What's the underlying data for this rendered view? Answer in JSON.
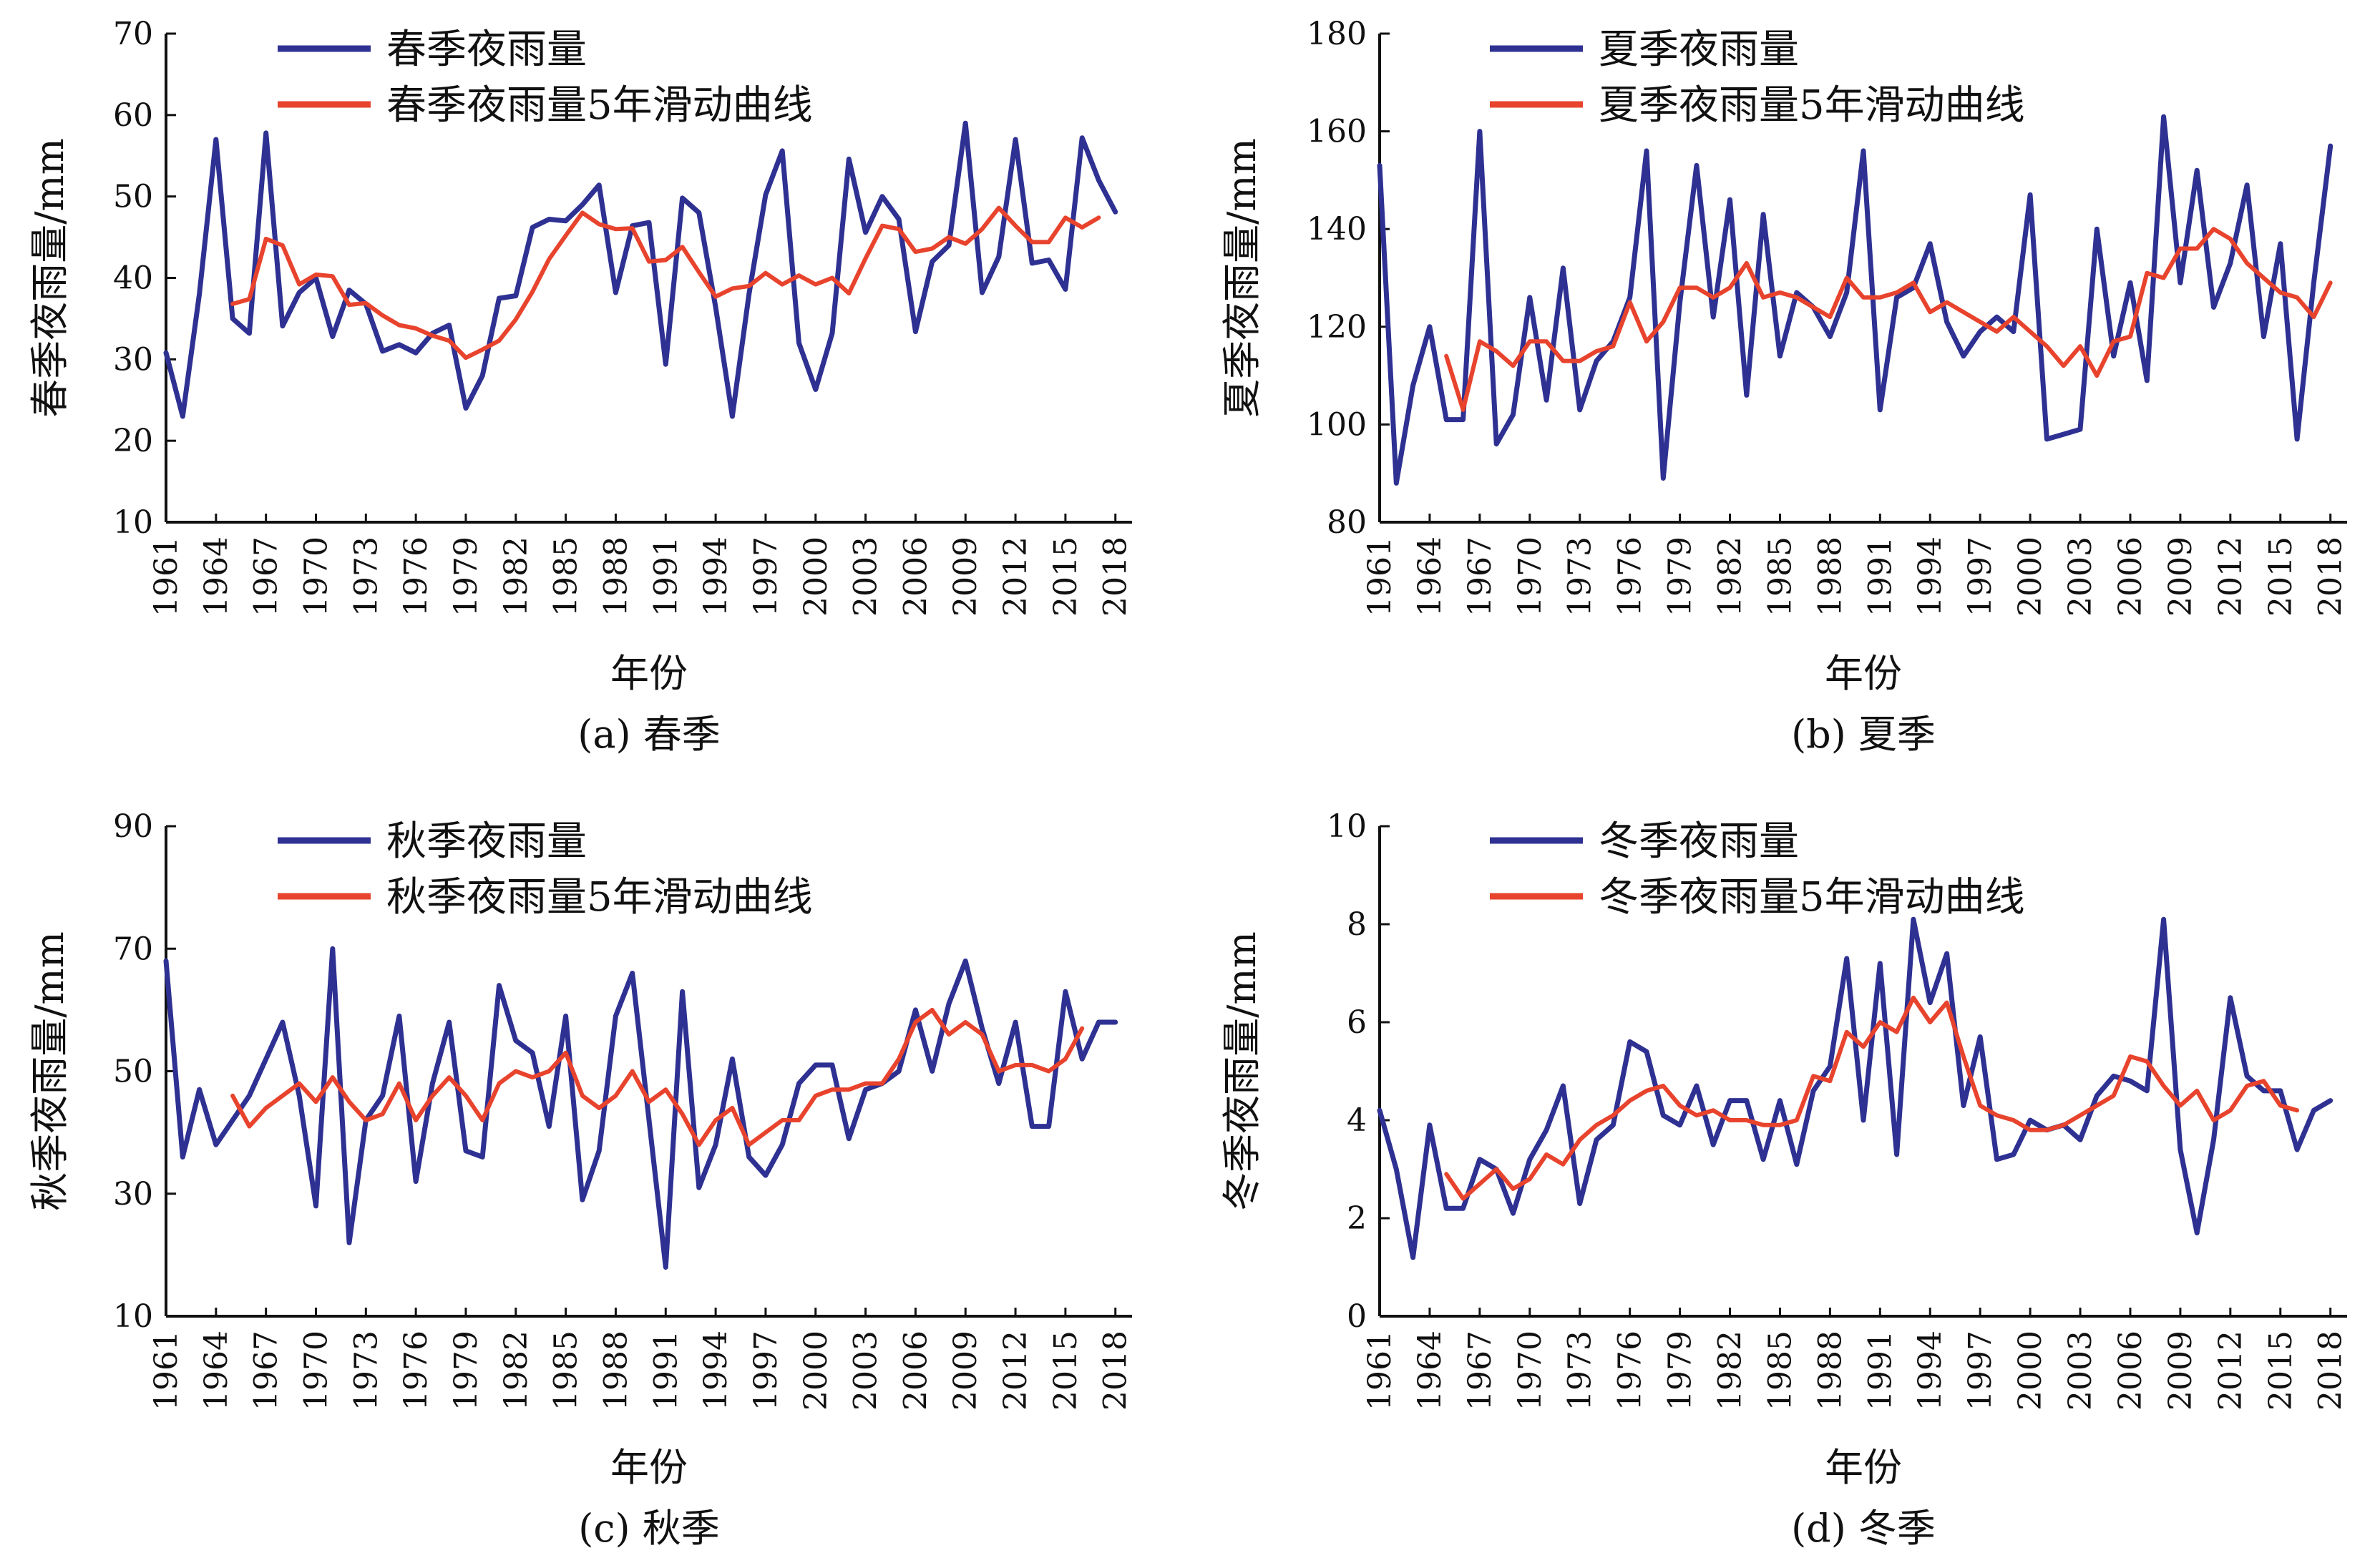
{
  "colors": {
    "raw": "#2e3192",
    "smooth": "#e8432d",
    "axis": "#111111"
  },
  "chart_data": [
    {
      "type": "line",
      "caption": "(a) 春季",
      "xlabel": "年份",
      "ylabel": "春季夜雨量/mm",
      "ylim": [
        10,
        70
      ],
      "yticks": [
        10,
        20,
        30,
        40,
        50,
        60,
        70
      ],
      "xlim": [
        1961,
        2019
      ],
      "xticks": [
        1961,
        1964,
        1967,
        1970,
        1973,
        1976,
        1979,
        1982,
        1985,
        1988,
        1991,
        1994,
        1997,
        2000,
        2003,
        2006,
        2009,
        2012,
        2015,
        2018
      ],
      "legend_position": "top-left",
      "series": [
        {
          "name": "春季夜雨量",
          "color": "#2e3192",
          "x_start": 1961,
          "values": [
            30.8,
            23.0,
            38.0,
            57.0,
            35.0,
            33.2,
            57.8,
            34.1,
            38.2,
            40.0,
            32.8,
            38.5,
            36.8,
            31.0,
            31.8,
            30.8,
            33.2,
            34.2,
            24.0,
            28.0,
            37.5,
            37.8,
            46.2,
            47.2,
            47.0,
            49.0,
            51.4,
            38.2,
            46.4,
            46.8,
            29.4,
            49.8,
            48.0,
            36.4,
            23.0,
            38.0,
            50.2,
            55.6,
            32.0,
            26.3,
            33.2,
            54.6,
            45.6,
            50.0,
            47.2,
            33.4,
            42.0,
            44.0,
            59.0,
            38.2,
            42.6,
            57.0,
            41.8,
            42.2,
            38.6,
            57.2,
            52.0,
            48.1
          ]
        },
        {
          "name": "春季夜雨量5年滑动曲线",
          "color": "#e8432d",
          "x_start": 1965,
          "values": [
            36.8,
            37.4,
            44.8,
            44.0,
            39.2,
            40.4,
            40.2,
            36.7,
            36.9,
            35.4,
            34.2,
            33.8,
            32.9,
            32.3,
            30.2,
            31.2,
            32.3,
            34.9,
            38.3,
            42.3,
            45.2,
            48.0,
            46.6,
            46.0,
            46.1,
            42.0,
            42.2,
            43.8,
            40.7,
            37.7,
            38.7,
            39.0,
            40.6,
            39.2,
            40.3,
            39.2,
            40.0,
            38.1,
            42.4,
            46.4,
            46.0,
            43.2,
            43.6,
            45.0,
            44.2,
            46.0,
            48.6,
            46.4,
            44.4,
            44.4,
            47.4,
            46.2,
            47.4
          ]
        }
      ]
    },
    {
      "type": "line",
      "caption": "(b) 夏季",
      "xlabel": "年份",
      "ylabel": "夏季夜雨量/mm",
      "ylim": [
        80,
        180
      ],
      "yticks": [
        80,
        100,
        120,
        140,
        160,
        180
      ],
      "xlim": [
        1961,
        2019
      ],
      "xticks": [
        1961,
        1964,
        1967,
        1970,
        1973,
        1976,
        1979,
        1982,
        1985,
        1988,
        1991,
        1994,
        1997,
        2000,
        2003,
        2006,
        2009,
        2012,
        2015,
        2018
      ],
      "legend_position": "top-left",
      "series": [
        {
          "name": "夏季夜雨量",
          "color": "#2e3192",
          "x_start": 1961,
          "values": [
            153,
            88,
            108,
            120,
            101,
            101,
            160,
            96,
            102,
            126,
            105,
            132,
            103,
            113,
            117,
            126,
            156,
            89,
            125,
            153,
            122,
            146,
            106,
            143,
            114,
            127,
            124,
            118,
            127,
            156,
            103,
            126,
            128,
            137,
            121,
            114,
            119,
            122,
            119,
            147,
            97,
            98,
            99,
            140,
            114,
            129,
            109,
            163,
            129,
            152,
            124,
            133,
            149,
            118,
            137,
            97,
            129,
            157
          ]
        },
        {
          "name": "夏季夜雨量5年滑动曲线",
          "color": "#e8432d",
          "x_start": 1965,
          "values": [
            114,
            103,
            117,
            115,
            112,
            117,
            117,
            113,
            113,
            115,
            116,
            125,
            117,
            121,
            128,
            128,
            126,
            128,
            133,
            126,
            127,
            126,
            124,
            122,
            130,
            126,
            126,
            127,
            129,
            123,
            125,
            123,
            121,
            119,
            122,
            119,
            116,
            112,
            116,
            110,
            117,
            118,
            131,
            130,
            136,
            136,
            140,
            138,
            133,
            130,
            127,
            126,
            122,
            129
          ]
        }
      ]
    },
    {
      "type": "line",
      "caption": "(c) 秋季",
      "xlabel": "年份",
      "ylabel": "秋季夜雨量/mm",
      "ylim": [
        10,
        90
      ],
      "yticks": [
        10,
        30,
        50,
        70,
        90
      ],
      "xlim": [
        1961,
        2019
      ],
      "xticks": [
        1961,
        1964,
        1967,
        1970,
        1973,
        1976,
        1979,
        1982,
        1985,
        1988,
        1991,
        1994,
        1997,
        2000,
        2003,
        2006,
        2009,
        2012,
        2015,
        2018
      ],
      "legend_position": "top-left",
      "series": [
        {
          "name": "秋季夜雨量",
          "color": "#2e3192",
          "x_start": 1961,
          "values": [
            68,
            36,
            47,
            38,
            42,
            46,
            52,
            58,
            46,
            28,
            70,
            22,
            42,
            46,
            59,
            32,
            48,
            58,
            37,
            36,
            64,
            55,
            53,
            41,
            59,
            29,
            37,
            59,
            66,
            42,
            18,
            63,
            31,
            38,
            52,
            36,
            33,
            38,
            48,
            51,
            51,
            39,
            47,
            48,
            50,
            60,
            50,
            61,
            68,
            57,
            48,
            58,
            41,
            41,
            63,
            52,
            58,
            58
          ]
        },
        {
          "name": "秋季夜雨量5年滑动曲线",
          "color": "#e8432d",
          "x_start": 1965,
          "values": [
            46,
            41,
            44,
            46,
            48,
            45,
            49,
            45,
            42,
            43,
            48,
            42,
            46,
            49,
            46,
            42,
            48,
            50,
            49,
            50,
            53,
            46,
            44,
            46,
            50,
            45,
            47,
            43,
            38,
            42,
            44,
            38,
            40,
            42,
            42,
            46,
            47,
            47,
            48,
            48,
            52,
            58,
            60,
            56,
            58,
            56,
            50,
            51,
            51,
            50,
            52,
            57
          ]
        }
      ]
    },
    {
      "type": "line",
      "caption": "(d) 冬季",
      "xlabel": "年份",
      "ylabel": "冬季夜雨量/mm",
      "ylim": [
        0,
        10
      ],
      "yticks": [
        0,
        2,
        4,
        6,
        8,
        10
      ],
      "xlim": [
        1961,
        2019
      ],
      "xticks": [
        1961,
        1964,
        1967,
        1970,
        1973,
        1976,
        1979,
        1982,
        1985,
        1988,
        1991,
        1994,
        1997,
        2000,
        2003,
        2006,
        2009,
        2012,
        2015,
        2018
      ],
      "legend_position": "top-left",
      "series": [
        {
          "name": "冬季夜雨量",
          "color": "#2e3192",
          "x_start": 1961,
          "values": [
            4.2,
            3.0,
            1.2,
            3.9,
            2.2,
            2.2,
            3.2,
            3.0,
            2.1,
            3.2,
            3.8,
            4.7,
            2.3,
            3.6,
            3.9,
            5.6,
            5.4,
            4.1,
            3.9,
            4.7,
            3.5,
            4.4,
            4.4,
            3.2,
            4.4,
            3.1,
            4.6,
            5.1,
            7.3,
            4.0,
            7.2,
            3.3,
            8.1,
            6.4,
            7.4,
            4.3,
            5.7,
            3.2,
            3.3,
            4.0,
            3.8,
            3.9,
            3.6,
            4.5,
            4.9,
            4.8,
            4.6,
            8.1,
            3.4,
            1.7,
            3.6,
            6.5,
            4.9,
            4.6,
            4.6,
            3.4,
            4.2,
            4.4
          ]
        },
        {
          "name": "冬季夜雨量5年滑动曲线",
          "color": "#e8432d",
          "x_start": 1965,
          "values": [
            2.9,
            2.4,
            2.7,
            3.0,
            2.6,
            2.8,
            3.3,
            3.1,
            3.6,
            3.9,
            4.1,
            4.4,
            4.6,
            4.7,
            4.3,
            4.1,
            4.2,
            4.0,
            4.0,
            3.9,
            3.9,
            4.0,
            4.9,
            4.8,
            5.8,
            5.5,
            6.0,
            5.8,
            6.5,
            6.0,
            6.4,
            5.3,
            4.3,
            4.1,
            4.0,
            3.8,
            3.8,
            3.9,
            4.1,
            4.3,
            4.5,
            5.3,
            5.2,
            4.7,
            4.3,
            4.6,
            4.0,
            4.2,
            4.7,
            4.8,
            4.3,
            4.2
          ]
        }
      ]
    }
  ]
}
